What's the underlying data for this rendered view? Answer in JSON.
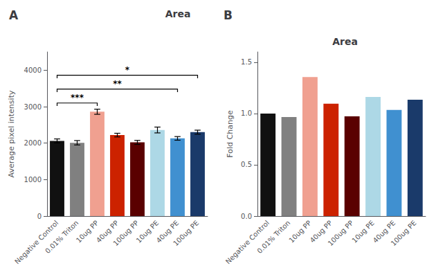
{
  "title": "Area",
  "chart_data": [
    {
      "type": "bar",
      "panel_label": "A",
      "ylabel": "Average pixel intensity",
      "categories": [
        "Negative Control",
        "0.01% Triton",
        "10ug PP",
        "40ug PP",
        "100ug PP",
        "10ug PE",
        "40ug PE",
        "100ug PE"
      ],
      "values": [
        2060,
        2010,
        2860,
        2220,
        2020,
        2360,
        2130,
        2300
      ],
      "errors": [
        55,
        60,
        70,
        50,
        55,
        80,
        50,
        55
      ],
      "colors": [
        "#111111",
        "#808080",
        "#f0a090",
        "#cc2200",
        "#5a0000",
        "#add8e6",
        "#4090d0",
        "#1a3a6a"
      ],
      "ylim": [
        0,
        4500
      ],
      "yticks": [
        0,
        1000,
        2000,
        3000,
        4000
      ],
      "grid": false,
      "annotations": [
        {
          "text": "***",
          "x1": "Negative Control",
          "x2": "10ug PP",
          "y": 3100,
          "dy": 80
        },
        {
          "text": "**",
          "x1": "Negative Control",
          "x2": "40ug PE",
          "y": 3480,
          "dy": 80
        },
        {
          "text": "*",
          "x1": "Negative Control",
          "x2": "100ug PE",
          "y": 3860,
          "dy": 80
        }
      ]
    },
    {
      "type": "bar",
      "panel_label": "B",
      "title": "Area",
      "ylabel": "Fold Change",
      "categories": [
        "Negative Control",
        "0.01% Triton",
        "10ug PP",
        "40ug PP",
        "100ug PP",
        "10ug PE",
        "40ug PE",
        "100ug PE"
      ],
      "values": [
        1.0,
        0.965,
        1.355,
        1.095,
        0.972,
        1.162,
        1.035,
        1.135
      ],
      "colors": [
        "#111111",
        "#808080",
        "#f0a090",
        "#cc2200",
        "#5a0000",
        "#add8e6",
        "#4090d0",
        "#1a3a6a"
      ],
      "ylim": [
        0,
        1.6
      ],
      "yticks": [
        {
          "value": 0,
          "label": "0.0"
        },
        0.5,
        {
          "value": 1,
          "label": "1.0"
        },
        1.5
      ],
      "grid": false
    }
  ]
}
